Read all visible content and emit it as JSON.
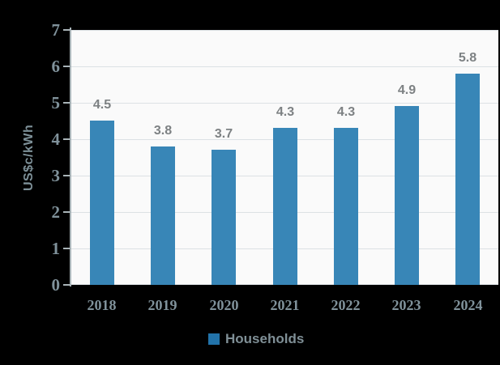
{
  "chart_data": {
    "type": "bar",
    "categories": [
      "2018",
      "2019",
      "2020",
      "2021",
      "2022",
      "2023",
      "2024"
    ],
    "values": [
      4.5,
      3.8,
      3.7,
      4.3,
      4.3,
      4.9,
      5.8
    ],
    "data_labels": [
      "4.5",
      "3.8",
      "3.7",
      "4.3",
      "4.3",
      "4.9",
      "5.8"
    ],
    "title": "",
    "xlabel": "",
    "ylabel": "US$c/kWh",
    "ylim": [
      0,
      7
    ],
    "yticks": [
      0,
      1,
      2,
      3,
      4,
      5,
      6,
      7
    ],
    "grid": true,
    "legend": {
      "label": "Households",
      "position": "bottom"
    },
    "bar_color": "#3886b7",
    "legend_marker_color": "#2273aa"
  },
  "colors": {
    "background": "#000000",
    "plot_background": "#fafafa",
    "gridline": "#dce1e4",
    "axis_line": "#a9b4b8",
    "tick_label": "#80929b",
    "data_label": "#7d8183",
    "axis_title": "#7d9098",
    "legend_text": "#7f8f96"
  }
}
